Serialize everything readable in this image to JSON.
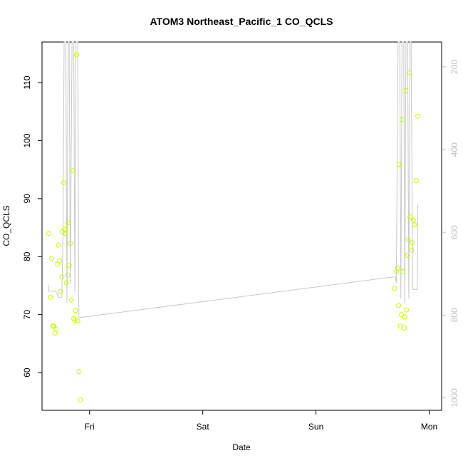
{
  "chart_data": {
    "type": "scatter",
    "title": "ATOM3 Northeast_Pacific_1 CO_QCLS",
    "xlabel": "Date",
    "ylabel": "CO_QCLS",
    "x_ticks": [
      "Fri",
      "Sat",
      "Sun",
      "Mon"
    ],
    "x_range_days": [
      -0.42,
      3.11
    ],
    "ylim": [
      53.5,
      117
    ],
    "y_ticks": [
      60,
      70,
      80,
      90,
      100,
      110
    ],
    "y2_ticks": [
      200,
      400,
      600,
      800,
      1000
    ],
    "y2_range": [
      140,
      1030
    ],
    "grid": false,
    "series": [
      {
        "color": "#bfff00",
        "points": [
          {
            "x": -0.36,
            "y": 84.0
          },
          {
            "x": -0.345,
            "y": 73.0
          },
          {
            "x": -0.335,
            "y": 79.7
          },
          {
            "x": -0.325,
            "y": 68.0
          },
          {
            "x": -0.315,
            "y": 68.0
          },
          {
            "x": -0.305,
            "y": 66.8
          },
          {
            "x": -0.295,
            "y": 67.5
          },
          {
            "x": -0.285,
            "y": 78.7
          },
          {
            "x": -0.275,
            "y": 82.0
          },
          {
            "x": -0.265,
            "y": 79.3
          },
          {
            "x": -0.26,
            "y": 74.0
          },
          {
            "x": -0.245,
            "y": 76.5
          },
          {
            "x": -0.24,
            "y": 84.3
          },
          {
            "x": -0.23,
            "y": 92.7
          },
          {
            "x": -0.22,
            "y": 84.7
          },
          {
            "x": -0.215,
            "y": 84.0
          },
          {
            "x": -0.205,
            "y": 75.5
          },
          {
            "x": -0.195,
            "y": 76.8
          },
          {
            "x": -0.19,
            "y": 85.8
          },
          {
            "x": -0.18,
            "y": 78.5
          },
          {
            "x": -0.17,
            "y": 82.3
          },
          {
            "x": -0.16,
            "y": 72.5
          },
          {
            "x": -0.15,
            "y": 94.8
          },
          {
            "x": -0.14,
            "y": 69.3
          },
          {
            "x": -0.13,
            "y": 69.0
          },
          {
            "x": -0.125,
            "y": 70.7
          },
          {
            "x": -0.115,
            "y": 114.8
          },
          {
            "x": -0.105,
            "y": 68.9
          },
          {
            "x": -0.095,
            "y": 60.2
          },
          {
            "x": -0.08,
            "y": 55.3
          },
          {
            "x": 2.695,
            "y": 74.5
          },
          {
            "x": 2.71,
            "y": 77.4
          },
          {
            "x": 2.72,
            "y": 78.0
          },
          {
            "x": 2.73,
            "y": 71.6
          },
          {
            "x": 2.735,
            "y": 95.9
          },
          {
            "x": 2.745,
            "y": 68.0
          },
          {
            "x": 2.755,
            "y": 70.0
          },
          {
            "x": 2.76,
            "y": 103.6
          },
          {
            "x": 2.77,
            "y": 77.4
          },
          {
            "x": 2.78,
            "y": 67.7
          },
          {
            "x": 2.785,
            "y": 69.6
          },
          {
            "x": 2.795,
            "y": 108.6
          },
          {
            "x": 2.8,
            "y": 70.8
          },
          {
            "x": 2.81,
            "y": 80.2
          },
          {
            "x": 2.815,
            "y": 82.9
          },
          {
            "x": 2.825,
            "y": 111.7
          },
          {
            "x": 2.83,
            "y": 86.9
          },
          {
            "x": 2.845,
            "y": 81.1
          },
          {
            "x": 2.85,
            "y": 82.4
          },
          {
            "x": 2.86,
            "y": 86.3
          },
          {
            "x": 2.87,
            "y": 85.5
          },
          {
            "x": 2.885,
            "y": 93.1
          },
          {
            "x": 2.9,
            "y": 104.2
          }
        ]
      }
    ],
    "altitude_line": {
      "color": "#c8c8c8",
      "axis": "right",
      "points": [
        {
          "x": -0.365,
          "y2": 726
        },
        {
          "x": -0.36,
          "y2": 742
        },
        {
          "x": -0.3,
          "y2": 742
        },
        {
          "x": -0.285,
          "y2": 750
        },
        {
          "x": -0.275,
          "y2": 757
        },
        {
          "x": -0.245,
          "y2": 757
        },
        {
          "x": -0.235,
          "y2": 610
        },
        {
          "x": -0.225,
          "y2": 140
        },
        {
          "x": -0.21,
          "y2": 140
        },
        {
          "x": -0.2,
          "y2": 770
        },
        {
          "x": -0.19,
          "y2": 140
        },
        {
          "x": -0.18,
          "y2": 140
        },
        {
          "x": -0.17,
          "y2": 725
        },
        {
          "x": -0.155,
          "y2": 140
        },
        {
          "x": -0.14,
          "y2": 140
        },
        {
          "x": -0.13,
          "y2": 745
        },
        {
          "x": -0.12,
          "y2": 140
        },
        {
          "x": -0.105,
          "y2": 140
        },
        {
          "x": -0.095,
          "y2": 806
        },
        {
          "x": 0.0,
          "y2": 803
        },
        {
          "x": 2.7,
          "y2": 707
        },
        {
          "x": 2.71,
          "y2": 722
        },
        {
          "x": 2.725,
          "y2": 140
        },
        {
          "x": 2.74,
          "y2": 140
        },
        {
          "x": 2.75,
          "y2": 760
        },
        {
          "x": 2.76,
          "y2": 140
        },
        {
          "x": 2.775,
          "y2": 140
        },
        {
          "x": 2.785,
          "y2": 770
        },
        {
          "x": 2.795,
          "y2": 140
        },
        {
          "x": 2.81,
          "y2": 140
        },
        {
          "x": 2.82,
          "y2": 760
        },
        {
          "x": 2.83,
          "y2": 140
        },
        {
          "x": 2.84,
          "y2": 140
        },
        {
          "x": 2.855,
          "y2": 738
        },
        {
          "x": 2.895,
          "y2": 738
        },
        {
          "x": 2.9,
          "y2": 530
        }
      ]
    }
  }
}
